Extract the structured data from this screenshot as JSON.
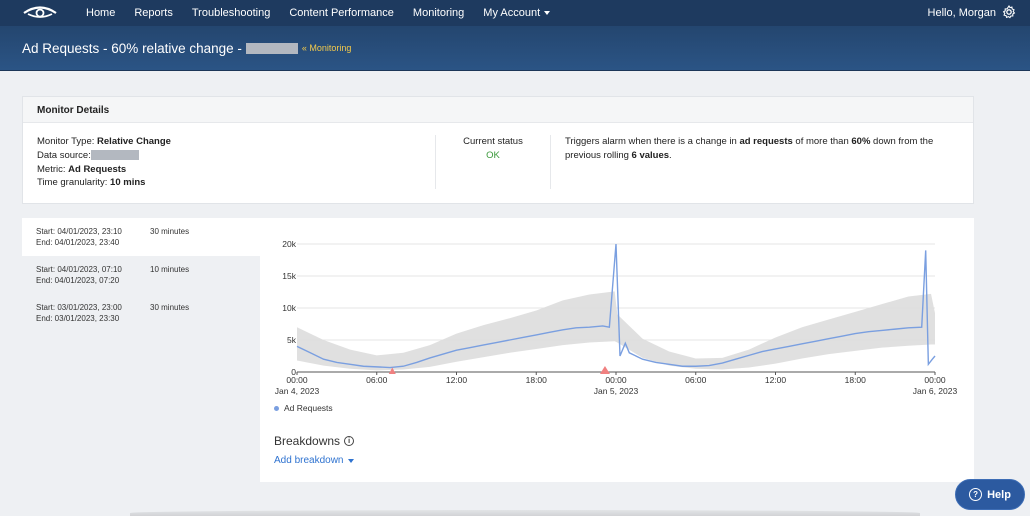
{
  "nav": {
    "items": [
      {
        "label": "Home"
      },
      {
        "label": "Reports"
      },
      {
        "label": "Troubleshooting"
      },
      {
        "label": "Content Performance"
      },
      {
        "label": "Monitoring"
      },
      {
        "label": "My Account"
      }
    ],
    "greeting": "Hello, Morgan",
    "brand_color": "#1e3a5f"
  },
  "title": {
    "text": "Ad Requests - 60% relative change -",
    "breadcrumb": "« Monitoring"
  },
  "monitor_details": {
    "header": "Monitor Details",
    "type_label": "Monitor Type:",
    "type_value": "Relative Change",
    "source_label": "Data source:",
    "metric_label": "Metric:",
    "metric_value": "Ad Requests",
    "granularity_label": "Time granularity:",
    "granularity_value": "10 mins",
    "status_label": "Current status",
    "status_value": "OK",
    "status_color": "#3c9a3c",
    "trigger_prefix": "Triggers alarm when there is a change in",
    "trigger_metric": "ad requests",
    "trigger_mid": "of more than",
    "trigger_pct": "60%",
    "trigger_mid2": "down from the previous rolling",
    "trigger_count": "6 values",
    "trigger_end": "."
  },
  "alerts": [
    {
      "start": "Start: 04/01/2023, 23:10",
      "end": "End: 04/01/2023, 23:40",
      "duration": "30 minutes"
    },
    {
      "start": "Start: 04/01/2023, 07:10",
      "end": "End: 04/01/2023, 07:20",
      "duration": "10 minutes"
    },
    {
      "start": "Start: 03/01/2023, 23:00",
      "end": "End: 03/01/2023, 23:30",
      "duration": "30 minutes"
    }
  ],
  "chart_data": {
    "type": "line",
    "series": [
      {
        "name": "Ad Requests",
        "color": "#7a9fe0",
        "x": [
          0,
          1,
          2,
          3,
          4,
          5,
          6,
          7,
          8,
          9,
          10,
          11,
          12,
          13,
          14,
          15,
          16,
          17,
          18,
          19,
          20,
          21,
          22,
          23,
          23.5,
          24,
          24.3,
          24.7,
          25,
          26,
          27,
          28,
          29,
          30,
          31,
          32,
          33,
          34,
          35,
          36,
          37,
          38,
          39,
          40,
          41,
          42,
          43,
          44,
          45,
          46,
          47,
          47.3,
          47.5,
          47.8,
          48
        ],
        "values": [
          4000,
          3000,
          2000,
          1500,
          1200,
          900,
          800,
          700,
          900,
          1500,
          2200,
          2800,
          3400,
          3800,
          4200,
          4600,
          5000,
          5400,
          5800,
          6200,
          6600,
          6900,
          7000,
          7200,
          7000,
          20000,
          2500,
          4500,
          3000,
          2000,
          1500,
          1200,
          900,
          900,
          1000,
          1400,
          2000,
          2600,
          3200,
          3600,
          4000,
          4400,
          4800,
          5200,
          5600,
          6000,
          6300,
          6500,
          6700,
          6900,
          7000,
          19000,
          1200,
          2000,
          2500
        ]
      },
      {
        "name": "",
        "color": "#dddddd",
        "x": [
          0,
          2,
          4,
          6,
          8,
          10,
          12,
          14,
          16,
          18,
          20,
          22,
          23.9,
          24.1,
          26,
          28,
          30,
          32,
          34,
          36,
          38,
          40,
          42,
          44,
          46,
          47.7,
          48
        ],
        "upper": [
          7000,
          5000,
          3500,
          2600,
          3000,
          4200,
          6000,
          7300,
          8400,
          9600,
          11200,
          12100,
          12600,
          9000,
          5200,
          3200,
          2100,
          2200,
          3500,
          5400,
          7000,
          8200,
          9400,
          10600,
          11800,
          12200,
          9200
        ],
        "lower": [
          1800,
          1000,
          500,
          250,
          400,
          800,
          1600,
          2300,
          3000,
          3600,
          4200,
          4600,
          4800,
          4600,
          2200,
          1000,
          500,
          400,
          700,
          1300,
          2100,
          2800,
          3300,
          3800,
          4100,
          4300,
          4300
        ]
      }
    ],
    "x_ticks": [
      "00:00",
      "06:00",
      "12:00",
      "18:00",
      "00:00",
      "06:00",
      "12:00",
      "18:00",
      "00:00"
    ],
    "x_dates": [
      "Jan 4, 2023",
      "Jan 5, 2023",
      "Jan 6, 2023"
    ],
    "y_ticks": [
      "0",
      "5k",
      "10k",
      "15k",
      "20k"
    ],
    "ylim": [
      0,
      20000
    ],
    "xlim": [
      0,
      48
    ],
    "alarm_markers_x": [
      7.17,
      23.17
    ],
    "alarm_marker_color": "#f08080",
    "grid": true,
    "legend": "bottom-left"
  },
  "breakdowns": {
    "title": "Breakdowns",
    "add_label": "Add breakdown"
  },
  "help": {
    "label": "Help"
  }
}
